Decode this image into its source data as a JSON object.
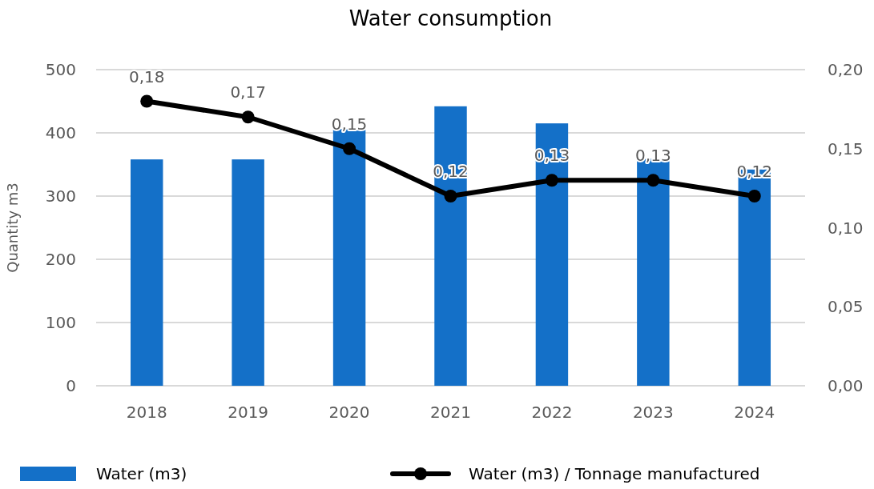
{
  "chart_data": {
    "type": "bar",
    "title": "Water consumption",
    "ylabel": "Quantity m3",
    "categories": [
      "2018",
      "2019",
      "2020",
      "2021",
      "2022",
      "2023",
      "2024"
    ],
    "series": [
      {
        "name": "Water (m3)",
        "color": "#1470c8",
        "values": [
          358,
          358,
          406,
          442,
          415,
          359,
          342
        ]
      },
      {
        "name": "Water (m3) / Tonnage manufactured",
        "type": "line",
        "axis": "y2",
        "color": "#000000",
        "values": [
          0.18,
          0.17,
          0.15,
          0.12,
          0.13,
          0.13,
          0.12
        ],
        "value_labels": [
          "0,18",
          "0,17",
          "0,15",
          "0,12",
          "0,13",
          "0,13",
          "0,12"
        ]
      }
    ],
    "ylim": [
      0,
      500
    ],
    "yticks": [
      0,
      100,
      200,
      300,
      400,
      500
    ],
    "y2lim": [
      0,
      0.2
    ],
    "y2ticks": [
      {
        "value": 0,
        "label": "0,00"
      },
      {
        "value": 0.05,
        "label": "0,05"
      },
      {
        "value": 0.1,
        "label": "0,10"
      },
      {
        "value": 0.15,
        "label": "0,15"
      },
      {
        "value": 0.2,
        "label": "0,20"
      }
    ],
    "grid": "y",
    "legend": "bottom",
    "marker": "circle",
    "line_style": "solid"
  }
}
